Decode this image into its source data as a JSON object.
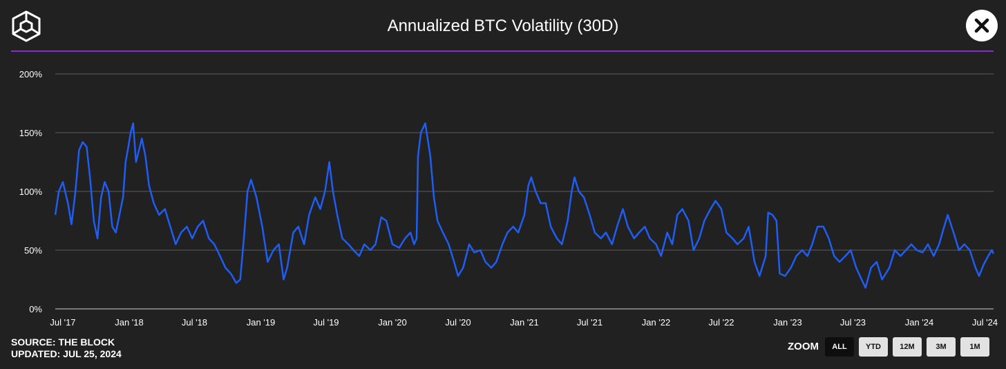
{
  "header": {
    "title": "Annualized BTC Volatility (30D)",
    "logo_icon": "cube-logo-icon",
    "close_icon": "close-icon",
    "accent_color": "#8a2bd4"
  },
  "footer": {
    "source": "SOURCE: THE BLOCK",
    "updated": "UPDATED: JUL 25, 2024"
  },
  "zoom": {
    "label": "ZOOM",
    "buttons": [
      {
        "label": "ALL",
        "active": true
      },
      {
        "label": "YTD",
        "active": false
      },
      {
        "label": "12M",
        "active": false
      },
      {
        "label": "3M",
        "active": false
      },
      {
        "label": "1M",
        "active": false
      }
    ]
  },
  "chart_data": {
    "type": "line",
    "title": "Annualized BTC Volatility (30D)",
    "line_color": "#1f5ef5",
    "grid": true,
    "xlim": [
      "2017-06-10",
      "2024-07-25"
    ],
    "ylim": [
      0,
      200
    ],
    "y_ticks": [
      {
        "value": 0,
        "label": "0%"
      },
      {
        "value": 50,
        "label": "50%"
      },
      {
        "value": 100,
        "label": "100%"
      },
      {
        "value": 150,
        "label": "150%"
      },
      {
        "value": 200,
        "label": "200%"
      }
    ],
    "x_ticks": [
      {
        "date": "2017-07-01",
        "label": "Jul '17"
      },
      {
        "date": "2018-01-01",
        "label": "Jan '18"
      },
      {
        "date": "2018-07-01",
        "label": "Jul '18"
      },
      {
        "date": "2019-01-01",
        "label": "Jan '19"
      },
      {
        "date": "2019-07-01",
        "label": "Jul '19"
      },
      {
        "date": "2020-01-01",
        "label": "Jan '20"
      },
      {
        "date": "2020-07-01",
        "label": "Jul '20"
      },
      {
        "date": "2021-01-01",
        "label": "Jan '21"
      },
      {
        "date": "2021-07-01",
        "label": "Jul '21"
      },
      {
        "date": "2022-01-01",
        "label": "Jan '22"
      },
      {
        "date": "2022-07-01",
        "label": "Jul '22"
      },
      {
        "date": "2023-01-01",
        "label": "Jan '23"
      },
      {
        "date": "2023-07-01",
        "label": "Jul '23"
      },
      {
        "date": "2024-01-01",
        "label": "Jan '24"
      },
      {
        "date": "2024-07-01",
        "label": "Jul '24"
      }
    ],
    "series": [
      {
        "values": [
          [
            "2017-06-10",
            80
          ],
          [
            "2017-06-20",
            100
          ],
          [
            "2017-07-01",
            108
          ],
          [
            "2017-07-15",
            90
          ],
          [
            "2017-07-25",
            72
          ],
          [
            "2017-08-05",
            100
          ],
          [
            "2017-08-15",
            135
          ],
          [
            "2017-08-25",
            142
          ],
          [
            "2017-09-05",
            138
          ],
          [
            "2017-09-15",
            110
          ],
          [
            "2017-09-25",
            75
          ],
          [
            "2017-10-05",
            60
          ],
          [
            "2017-10-15",
            95
          ],
          [
            "2017-10-25",
            108
          ],
          [
            "2017-11-05",
            100
          ],
          [
            "2017-11-15",
            70
          ],
          [
            "2017-11-25",
            65
          ],
          [
            "2017-12-05",
            80
          ],
          [
            "2017-12-15",
            95
          ],
          [
            "2017-12-22",
            125
          ],
          [
            "2017-12-28",
            135
          ],
          [
            "2018-01-05",
            150
          ],
          [
            "2018-01-12",
            158
          ],
          [
            "2018-01-20",
            125
          ],
          [
            "2018-01-28",
            135
          ],
          [
            "2018-02-05",
            145
          ],
          [
            "2018-02-15",
            130
          ],
          [
            "2018-02-25",
            105
          ],
          [
            "2018-03-10",
            90
          ],
          [
            "2018-03-25",
            80
          ],
          [
            "2018-04-10",
            85
          ],
          [
            "2018-04-25",
            70
          ],
          [
            "2018-05-10",
            55
          ],
          [
            "2018-05-25",
            65
          ],
          [
            "2018-06-10",
            70
          ],
          [
            "2018-06-25",
            60
          ],
          [
            "2018-07-10",
            70
          ],
          [
            "2018-07-25",
            75
          ],
          [
            "2018-08-10",
            60
          ],
          [
            "2018-08-25",
            55
          ],
          [
            "2018-09-10",
            45
          ],
          [
            "2018-09-25",
            35
          ],
          [
            "2018-10-10",
            30
          ],
          [
            "2018-10-25",
            22
          ],
          [
            "2018-11-05",
            25
          ],
          [
            "2018-11-15",
            60
          ],
          [
            "2018-11-25",
            100
          ],
          [
            "2018-12-05",
            110
          ],
          [
            "2018-12-20",
            95
          ],
          [
            "2019-01-05",
            70
          ],
          [
            "2019-01-20",
            40
          ],
          [
            "2019-02-05",
            50
          ],
          [
            "2019-02-20",
            55
          ],
          [
            "2019-03-05",
            25
          ],
          [
            "2019-03-15",
            35
          ],
          [
            "2019-04-01",
            65
          ],
          [
            "2019-04-15",
            70
          ],
          [
            "2019-05-01",
            55
          ],
          [
            "2019-05-15",
            80
          ],
          [
            "2019-06-01",
            95
          ],
          [
            "2019-06-15",
            85
          ],
          [
            "2019-06-28",
            100
          ],
          [
            "2019-07-10",
            125
          ],
          [
            "2019-07-20",
            100
          ],
          [
            "2019-08-01",
            80
          ],
          [
            "2019-08-15",
            60
          ],
          [
            "2019-09-01",
            55
          ],
          [
            "2019-09-15",
            50
          ],
          [
            "2019-10-01",
            45
          ],
          [
            "2019-10-15",
            55
          ],
          [
            "2019-11-01",
            50
          ],
          [
            "2019-11-15",
            55
          ],
          [
            "2019-12-01",
            78
          ],
          [
            "2019-12-15",
            75
          ],
          [
            "2020-01-01",
            55
          ],
          [
            "2020-01-20",
            52
          ],
          [
            "2020-02-05",
            60
          ],
          [
            "2020-02-20",
            65
          ],
          [
            "2020-03-01",
            55
          ],
          [
            "2020-03-08",
            60
          ],
          [
            "2020-03-12",
            130
          ],
          [
            "2020-03-20",
            150
          ],
          [
            "2020-04-01",
            158
          ],
          [
            "2020-04-15",
            130
          ],
          [
            "2020-04-25",
            95
          ],
          [
            "2020-05-05",
            75
          ],
          [
            "2020-05-20",
            65
          ],
          [
            "2020-06-05",
            55
          ],
          [
            "2020-06-20",
            40
          ],
          [
            "2020-07-01",
            28
          ],
          [
            "2020-07-15",
            35
          ],
          [
            "2020-08-01",
            55
          ],
          [
            "2020-08-15",
            48
          ],
          [
            "2020-09-01",
            50
          ],
          [
            "2020-09-15",
            40
          ],
          [
            "2020-10-01",
            35
          ],
          [
            "2020-10-15",
            40
          ],
          [
            "2020-11-01",
            55
          ],
          [
            "2020-11-15",
            65
          ],
          [
            "2020-12-01",
            70
          ],
          [
            "2020-12-15",
            65
          ],
          [
            "2021-01-01",
            80
          ],
          [
            "2021-01-12",
            105
          ],
          [
            "2021-01-20",
            112
          ],
          [
            "2021-02-01",
            100
          ],
          [
            "2021-02-15",
            90
          ],
          [
            "2021-03-01",
            90
          ],
          [
            "2021-03-15",
            70
          ],
          [
            "2021-04-01",
            60
          ],
          [
            "2021-04-15",
            55
          ],
          [
            "2021-05-01",
            75
          ],
          [
            "2021-05-12",
            100
          ],
          [
            "2021-05-20",
            112
          ],
          [
            "2021-06-01",
            100
          ],
          [
            "2021-06-15",
            95
          ],
          [
            "2021-07-01",
            80
          ],
          [
            "2021-07-15",
            65
          ],
          [
            "2021-08-01",
            60
          ],
          [
            "2021-08-15",
            65
          ],
          [
            "2021-09-01",
            55
          ],
          [
            "2021-09-15",
            70
          ],
          [
            "2021-10-01",
            85
          ],
          [
            "2021-10-15",
            70
          ],
          [
            "2021-11-01",
            60
          ],
          [
            "2021-11-15",
            65
          ],
          [
            "2021-12-01",
            70
          ],
          [
            "2021-12-15",
            60
          ],
          [
            "2022-01-01",
            55
          ],
          [
            "2022-01-15",
            45
          ],
          [
            "2022-02-01",
            65
          ],
          [
            "2022-02-15",
            55
          ],
          [
            "2022-03-01",
            80
          ],
          [
            "2022-03-15",
            85
          ],
          [
            "2022-04-01",
            75
          ],
          [
            "2022-04-15",
            50
          ],
          [
            "2022-05-01",
            60
          ],
          [
            "2022-05-15",
            75
          ],
          [
            "2022-06-01",
            85
          ],
          [
            "2022-06-15",
            92
          ],
          [
            "2022-07-01",
            85
          ],
          [
            "2022-07-15",
            65
          ],
          [
            "2022-08-01",
            60
          ],
          [
            "2022-08-15",
            55
          ],
          [
            "2022-09-01",
            60
          ],
          [
            "2022-09-15",
            70
          ],
          [
            "2022-10-01",
            40
          ],
          [
            "2022-10-15",
            28
          ],
          [
            "2022-11-01",
            45
          ],
          [
            "2022-11-08",
            82
          ],
          [
            "2022-11-20",
            80
          ],
          [
            "2022-12-01",
            75
          ],
          [
            "2022-12-10",
            30
          ],
          [
            "2022-12-25",
            28
          ],
          [
            "2023-01-10",
            35
          ],
          [
            "2023-01-25",
            45
          ],
          [
            "2023-02-10",
            50
          ],
          [
            "2023-02-25",
            45
          ],
          [
            "2023-03-10",
            55
          ],
          [
            "2023-03-25",
            70
          ],
          [
            "2023-04-10",
            70
          ],
          [
            "2023-04-25",
            60
          ],
          [
            "2023-05-10",
            45
          ],
          [
            "2023-05-25",
            40
          ],
          [
            "2023-06-10",
            45
          ],
          [
            "2023-06-25",
            50
          ],
          [
            "2023-07-10",
            35
          ],
          [
            "2023-07-25",
            25
          ],
          [
            "2023-08-05",
            18
          ],
          [
            "2023-08-20",
            35
          ],
          [
            "2023-09-05",
            40
          ],
          [
            "2023-09-20",
            25
          ],
          [
            "2023-10-10",
            35
          ],
          [
            "2023-10-25",
            50
          ],
          [
            "2023-11-10",
            45
          ],
          [
            "2023-11-25",
            50
          ],
          [
            "2023-12-10",
            55
          ],
          [
            "2023-12-25",
            50
          ],
          [
            "2024-01-10",
            48
          ],
          [
            "2024-01-25",
            55
          ],
          [
            "2024-02-10",
            45
          ],
          [
            "2024-02-25",
            55
          ],
          [
            "2024-03-10",
            70
          ],
          [
            "2024-03-20",
            80
          ],
          [
            "2024-04-05",
            65
          ],
          [
            "2024-04-20",
            50
          ],
          [
            "2024-05-05",
            55
          ],
          [
            "2024-05-20",
            50
          ],
          [
            "2024-06-05",
            35
          ],
          [
            "2024-06-15",
            28
          ],
          [
            "2024-06-28",
            38
          ],
          [
            "2024-07-10",
            45
          ],
          [
            "2024-07-20",
            50
          ],
          [
            "2024-07-25",
            47
          ]
        ]
      }
    ]
  }
}
